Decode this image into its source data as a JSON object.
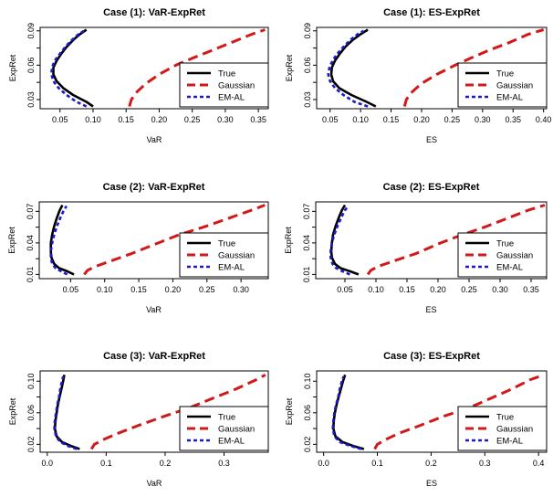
{
  "colors": {
    "true": "#000000",
    "gaussian": "#d11919",
    "emal": "#1a1acc"
  },
  "legend_labels": [
    "True",
    "Gaussian",
    "EM-AL"
  ],
  "chart_data": [
    {
      "type": "line",
      "title": "Case (1): VaR-ExpRet",
      "xlabel": "VaR",
      "ylabel": "ExpRet",
      "xlim": [
        0.02,
        0.365
      ],
      "ylim": [
        0.022,
        0.093
      ],
      "xticks": [
        "0.05",
        "0.10",
        "0.15",
        "0.20",
        "0.25",
        "0.30",
        "0.35"
      ],
      "yticks": [
        "0.03",
        "0.06",
        "0.09"
      ],
      "y_minor_ticks": [
        0.045,
        0.075
      ],
      "legend_position": "right-middle",
      "series": [
        {
          "name": "True",
          "points": [
            [
              0.1,
              0.024
            ],
            [
              0.09,
              0.028
            ],
            [
              0.07,
              0.034
            ],
            [
              0.055,
              0.04
            ],
            [
              0.045,
              0.046
            ],
            [
              0.04,
              0.052
            ],
            [
              0.04,
              0.058
            ],
            [
              0.045,
              0.064
            ],
            [
              0.052,
              0.07
            ],
            [
              0.06,
              0.076
            ],
            [
              0.07,
              0.082
            ],
            [
              0.08,
              0.087
            ],
            [
              0.09,
              0.091
            ]
          ]
        },
        {
          "name": "Gaussian",
          "points": [
            [
              0.155,
              0.024
            ],
            [
              0.158,
              0.03
            ],
            [
              0.165,
              0.036
            ],
            [
              0.18,
              0.044
            ],
            [
              0.2,
              0.052
            ],
            [
              0.225,
              0.06
            ],
            [
              0.25,
              0.066
            ],
            [
              0.28,
              0.073
            ],
            [
              0.31,
              0.08
            ],
            [
              0.34,
              0.087
            ],
            [
              0.36,
              0.091
            ]
          ]
        },
        {
          "name": "EM-AL",
          "points": [
            [
              0.09,
              0.024
            ],
            [
              0.075,
              0.028
            ],
            [
              0.06,
              0.034
            ],
            [
              0.048,
              0.04
            ],
            [
              0.04,
              0.046
            ],
            [
              0.037,
              0.052
            ],
            [
              0.038,
              0.058
            ],
            [
              0.042,
              0.064
            ],
            [
              0.05,
              0.07
            ],
            [
              0.058,
              0.076
            ],
            [
              0.068,
              0.082
            ],
            [
              0.078,
              0.087
            ],
            [
              0.086,
              0.09
            ]
          ]
        }
      ]
    },
    {
      "type": "line",
      "title": "Case (1): ES-ExpRet",
      "xlabel": "ES",
      "ylabel": "ExpRet",
      "xlim": [
        0.028,
        0.405
      ],
      "ylim": [
        0.022,
        0.093
      ],
      "xticks": [
        "0.05",
        "0.10",
        "0.15",
        "0.20",
        "0.25",
        "0.30",
        "0.35",
        "0.40"
      ],
      "yticks": [
        "0.03",
        "0.06",
        "0.09"
      ],
      "y_minor_ticks": [
        0.045,
        0.075
      ],
      "legend_position": "right-middle",
      "series": [
        {
          "name": "True",
          "points": [
            [
              0.125,
              0.024
            ],
            [
              0.11,
              0.028
            ],
            [
              0.085,
              0.034
            ],
            [
              0.065,
              0.04
            ],
            [
              0.055,
              0.046
            ],
            [
              0.052,
              0.052
            ],
            [
              0.053,
              0.058
            ],
            [
              0.058,
              0.064
            ],
            [
              0.066,
              0.07
            ],
            [
              0.075,
              0.076
            ],
            [
              0.087,
              0.082
            ],
            [
              0.1,
              0.087
            ],
            [
              0.112,
              0.091
            ]
          ]
        },
        {
          "name": "Gaussian",
          "points": [
            [
              0.172,
              0.024
            ],
            [
              0.175,
              0.03
            ],
            [
              0.183,
              0.036
            ],
            [
              0.2,
              0.044
            ],
            [
              0.225,
              0.052
            ],
            [
              0.255,
              0.06
            ],
            [
              0.28,
              0.066
            ],
            [
              0.31,
              0.073
            ],
            [
              0.345,
              0.08
            ],
            [
              0.375,
              0.087
            ],
            [
              0.4,
              0.091
            ]
          ]
        },
        {
          "name": "EM-AL",
          "points": [
            [
              0.112,
              0.024
            ],
            [
              0.09,
              0.028
            ],
            [
              0.072,
              0.034
            ],
            [
              0.058,
              0.04
            ],
            [
              0.05,
              0.046
            ],
            [
              0.047,
              0.052
            ],
            [
              0.049,
              0.058
            ],
            [
              0.054,
              0.064
            ],
            [
              0.062,
              0.07
            ],
            [
              0.072,
              0.076
            ],
            [
              0.083,
              0.082
            ],
            [
              0.095,
              0.087
            ],
            [
              0.105,
              0.09
            ]
          ]
        }
      ]
    },
    {
      "type": "line",
      "title": "Case (2): VaR-ExpRet",
      "xlabel": "VaR",
      "ylabel": "ExpRet",
      "xlim": [
        0.004,
        0.34
      ],
      "ylim": [
        0.006,
        0.079
      ],
      "xticks": [
        "0.05",
        "0.10",
        "0.15",
        "0.20",
        "0.25",
        "0.30"
      ],
      "yticks": [
        "0.01",
        "0.04",
        "0.07"
      ],
      "y_minor_ticks": [
        0.025,
        0.055
      ],
      "legend_position": "right-middle",
      "series": [
        {
          "name": "True",
          "points": [
            [
              0.055,
              0.01
            ],
            [
              0.045,
              0.013
            ],
            [
              0.033,
              0.016
            ],
            [
              0.026,
              0.02
            ],
            [
              0.022,
              0.026
            ],
            [
              0.021,
              0.032
            ],
            [
              0.021,
              0.04
            ],
            [
              0.023,
              0.048
            ],
            [
              0.026,
              0.056
            ],
            [
              0.03,
              0.064
            ],
            [
              0.034,
              0.071
            ],
            [
              0.038,
              0.076
            ]
          ]
        },
        {
          "name": "Gaussian",
          "points": [
            [
              0.07,
              0.01
            ],
            [
              0.075,
              0.014
            ],
            [
              0.088,
              0.018
            ],
            [
              0.11,
              0.023
            ],
            [
              0.14,
              0.03
            ],
            [
              0.175,
              0.039
            ],
            [
              0.21,
              0.048
            ],
            [
              0.245,
              0.055
            ],
            [
              0.28,
              0.063
            ],
            [
              0.315,
              0.071
            ],
            [
              0.335,
              0.076
            ]
          ]
        },
        {
          "name": "EM-AL",
          "points": [
            [
              0.045,
              0.01
            ],
            [
              0.036,
              0.013
            ],
            [
              0.028,
              0.016
            ],
            [
              0.023,
              0.02
            ],
            [
              0.021,
              0.026
            ],
            [
              0.021,
              0.032
            ],
            [
              0.023,
              0.04
            ],
            [
              0.026,
              0.048
            ],
            [
              0.03,
              0.056
            ],
            [
              0.035,
              0.064
            ],
            [
              0.04,
              0.071
            ],
            [
              0.044,
              0.075
            ]
          ]
        }
      ]
    },
    {
      "type": "line",
      "title": "Case (2): ES-ExpRet",
      "xlabel": "ES",
      "ylabel": "ExpRet",
      "xlim": [
        0.003,
        0.375
      ],
      "ylim": [
        0.006,
        0.079
      ],
      "xticks": [
        "0.05",
        "0.10",
        "0.15",
        "0.20",
        "0.25",
        "0.30",
        "0.35"
      ],
      "yticks": [
        "0.01",
        "0.04",
        "0.07"
      ],
      "y_minor_ticks": [
        0.025,
        0.055
      ],
      "legend_position": "right-middle",
      "series": [
        {
          "name": "True",
          "points": [
            [
              0.072,
              0.01
            ],
            [
              0.058,
              0.013
            ],
            [
              0.043,
              0.016
            ],
            [
              0.034,
              0.02
            ],
            [
              0.029,
              0.026
            ],
            [
              0.028,
              0.032
            ],
            [
              0.029,
              0.04
            ],
            [
              0.031,
              0.048
            ],
            [
              0.035,
              0.056
            ],
            [
              0.04,
              0.064
            ],
            [
              0.045,
              0.071
            ],
            [
              0.05,
              0.076
            ]
          ]
        },
        {
          "name": "Gaussian",
          "points": [
            [
              0.087,
              0.01
            ],
            [
              0.092,
              0.014
            ],
            [
              0.105,
              0.018
            ],
            [
              0.13,
              0.023
            ],
            [
              0.165,
              0.03
            ],
            [
              0.2,
              0.039
            ],
            [
              0.24,
              0.048
            ],
            [
              0.275,
              0.055
            ],
            [
              0.31,
              0.063
            ],
            [
              0.345,
              0.071
            ],
            [
              0.372,
              0.076
            ]
          ]
        },
        {
          "name": "EM-AL",
          "points": [
            [
              0.058,
              0.01
            ],
            [
              0.046,
              0.013
            ],
            [
              0.036,
              0.016
            ],
            [
              0.03,
              0.02
            ],
            [
              0.027,
              0.026
            ],
            [
              0.027,
              0.032
            ],
            [
              0.029,
              0.04
            ],
            [
              0.033,
              0.048
            ],
            [
              0.038,
              0.056
            ],
            [
              0.044,
              0.064
            ],
            [
              0.05,
              0.071
            ],
            [
              0.055,
              0.075
            ]
          ]
        }
      ]
    },
    {
      "type": "line",
      "title": "Case (3): VaR-ExpRet",
      "xlabel": "VaR",
      "ylabel": "ExpRet",
      "xlim": [
        -0.012,
        0.375
      ],
      "ylim": [
        0.01,
        0.113
      ],
      "xticks": [
        "0.0",
        "0.1",
        "0.2",
        "0.3"
      ],
      "yticks": [
        "0.02",
        "0.06",
        "0.10"
      ],
      "y_minor_ticks": [
        0.04,
        0.08
      ],
      "legend_position": "right-middle",
      "series": [
        {
          "name": "True",
          "points": [
            [
              0.055,
              0.014
            ],
            [
              0.04,
              0.018
            ],
            [
              0.025,
              0.023
            ],
            [
              0.016,
              0.03
            ],
            [
              0.013,
              0.04
            ],
            [
              0.014,
              0.05
            ],
            [
              0.016,
              0.06
            ],
            [
              0.018,
              0.07
            ],
            [
              0.021,
              0.08
            ],
            [
              0.024,
              0.09
            ],
            [
              0.027,
              0.1
            ],
            [
              0.029,
              0.108
            ]
          ]
        },
        {
          "name": "Gaussian",
          "points": [
            [
              0.075,
              0.014
            ],
            [
              0.08,
              0.02
            ],
            [
              0.095,
              0.026
            ],
            [
              0.12,
              0.034
            ],
            [
              0.155,
              0.044
            ],
            [
              0.2,
              0.056
            ],
            [
              0.24,
              0.066
            ],
            [
              0.28,
              0.078
            ],
            [
              0.32,
              0.09
            ],
            [
              0.355,
              0.102
            ],
            [
              0.37,
              0.108
            ]
          ]
        },
        {
          "name": "EM-AL",
          "points": [
            [
              0.05,
              0.014
            ],
            [
              0.035,
              0.018
            ],
            [
              0.022,
              0.023
            ],
            [
              0.015,
              0.03
            ],
            [
              0.012,
              0.04
            ],
            [
              0.013,
              0.05
            ],
            [
              0.015,
              0.06
            ],
            [
              0.017,
              0.07
            ],
            [
              0.02,
              0.08
            ],
            [
              0.022,
              0.09
            ],
            [
              0.025,
              0.1
            ],
            [
              0.027,
              0.106
            ]
          ]
        }
      ]
    },
    {
      "type": "line",
      "title": "Case (3): ES-ExpRet",
      "xlabel": "ES",
      "ylabel": "ExpRet",
      "xlim": [
        -0.013,
        0.415
      ],
      "ylim": [
        0.01,
        0.113
      ],
      "xticks": [
        "0.0",
        "0.1",
        "0.2",
        "0.3",
        "0.4"
      ],
      "yticks": [
        "0.02",
        "0.06",
        "0.10"
      ],
      "y_minor_ticks": [
        0.04,
        0.08
      ],
      "legend_position": "right-middle",
      "series": [
        {
          "name": "True",
          "points": [
            [
              0.075,
              0.014
            ],
            [
              0.055,
              0.018
            ],
            [
              0.035,
              0.023
            ],
            [
              0.022,
              0.03
            ],
            [
              0.018,
              0.04
            ],
            [
              0.019,
              0.05
            ],
            [
              0.021,
              0.06
            ],
            [
              0.024,
              0.07
            ],
            [
              0.028,
              0.08
            ],
            [
              0.032,
              0.09
            ],
            [
              0.036,
              0.1
            ],
            [
              0.04,
              0.108
            ]
          ]
        },
        {
          "name": "Gaussian",
          "points": [
            [
              0.095,
              0.014
            ],
            [
              0.1,
              0.02
            ],
            [
              0.115,
              0.026
            ],
            [
              0.14,
              0.034
            ],
            [
              0.18,
              0.044
            ],
            [
              0.225,
              0.056
            ],
            [
              0.27,
              0.066
            ],
            [
              0.31,
              0.078
            ],
            [
              0.35,
              0.09
            ],
            [
              0.385,
              0.102
            ],
            [
              0.41,
              0.108
            ]
          ]
        },
        {
          "name": "EM-AL",
          "points": [
            [
              0.07,
              0.014
            ],
            [
              0.05,
              0.018
            ],
            [
              0.03,
              0.023
            ],
            [
              0.02,
              0.03
            ],
            [
              0.017,
              0.04
            ],
            [
              0.018,
              0.05
            ],
            [
              0.02,
              0.06
            ],
            [
              0.023,
              0.07
            ],
            [
              0.027,
              0.08
            ],
            [
              0.03,
              0.09
            ],
            [
              0.034,
              0.1
            ],
            [
              0.037,
              0.106
            ]
          ]
        }
      ]
    }
  ]
}
